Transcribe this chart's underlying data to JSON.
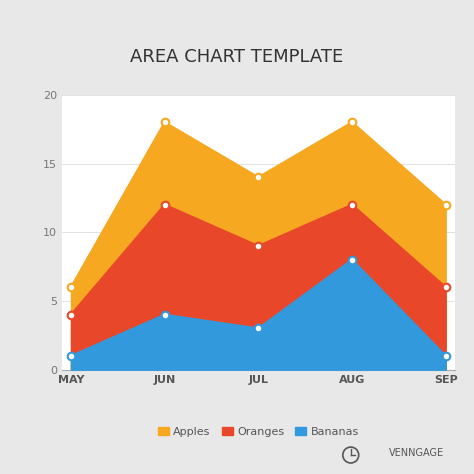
{
  "title": "AREA CHART TEMPLATE",
  "months": [
    "MAY",
    "JUN",
    "JUL",
    "AUG",
    "SEP"
  ],
  "series": [
    {
      "name": "Apples",
      "values": [
        6,
        18,
        14,
        18,
        12
      ],
      "color": "#F5A820"
    },
    {
      "name": "Oranges",
      "values": [
        4,
        12,
        9,
        12,
        6
      ],
      "color": "#E8472A"
    },
    {
      "name": "Bananas",
      "values": [
        1,
        4,
        3,
        8,
        1
      ],
      "color": "#3399DD"
    }
  ],
  "ylim": [
    0,
    20
  ],
  "yticks": [
    0,
    5,
    10,
    15,
    20
  ],
  "page_bg_color": "#E8E8E8",
  "chart_bg_color": "#FFFFFF",
  "title_fontsize": 13,
  "tick_fontsize": 8,
  "legend_labels": [
    "Apples",
    "Oranges",
    "Bananas"
  ],
  "legend_colors": [
    "#F5A820",
    "#E8472A",
    "#3399DD"
  ]
}
